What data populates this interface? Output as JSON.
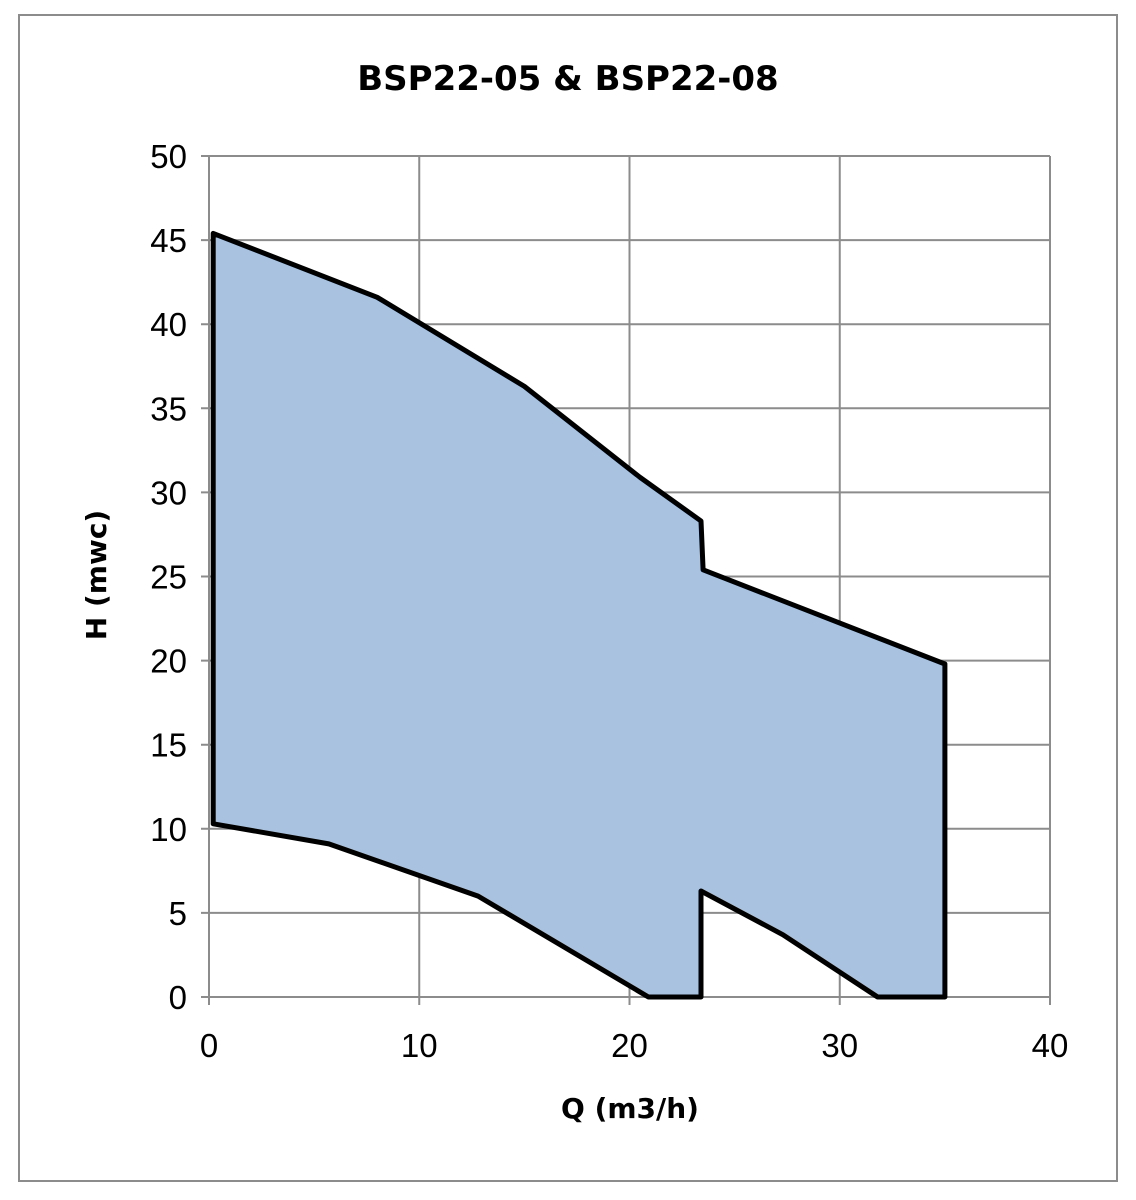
{
  "chart_data": {
    "type": "area",
    "title": "BSP22-05 & BSP22-08",
    "xlabel": "Q (m3/h)",
    "ylabel": "H (mwc)",
    "xlim": [
      0,
      40
    ],
    "ylim": [
      0,
      50
    ],
    "xticks": [
      "0",
      "10",
      "20",
      "30",
      "40"
    ],
    "yticks": [
      "0",
      "5",
      "10",
      "15",
      "20",
      "25",
      "30",
      "35",
      "40",
      "45",
      "50"
    ],
    "grid": true,
    "fill_color": "#a9c2df",
    "outline_color": "#000000",
    "series": [
      {
        "points": [
          [
            0.2,
            45.4
          ],
          [
            8.0,
            41.6
          ],
          [
            15.0,
            36.3
          ],
          [
            20.5,
            30.9
          ],
          [
            23.4,
            28.3
          ],
          [
            23.5,
            25.4
          ],
          [
            35.0,
            19.8
          ],
          [
            35.0,
            0.0
          ],
          [
            31.8,
            0.0
          ],
          [
            27.3,
            3.7
          ],
          [
            23.4,
            6.3
          ],
          [
            23.4,
            0.0
          ],
          [
            20.9,
            0.0
          ],
          [
            12.8,
            6.0
          ],
          [
            5.7,
            9.1
          ],
          [
            0.2,
            10.3
          ],
          [
            0.2,
            45.4
          ]
        ]
      }
    ]
  }
}
